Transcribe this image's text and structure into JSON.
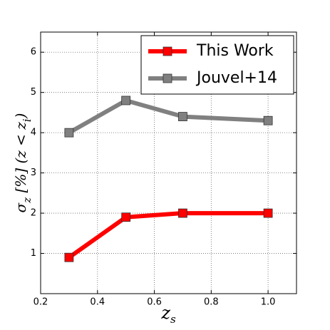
{
  "chart_data": {
    "type": "line",
    "x_label": [
      "z",
      "s"
    ],
    "y_label": [
      "σ",
      "z",
      " [%]   (z < z",
      "i",
      ")"
    ],
    "series": [
      {
        "name": "This Work",
        "color": "#ff0000",
        "x": [
          0.3,
          0.5,
          0.7,
          1.0
        ],
        "values": [
          0.9,
          1.9,
          2.0,
          2.0
        ]
      },
      {
        "name": "Jouvel+14",
        "color": "#808080",
        "x": [
          0.3,
          0.5,
          0.7,
          1.0
        ],
        "values": [
          4.0,
          4.8,
          4.4,
          4.3
        ]
      }
    ],
    "xlim": [
      0.2,
      1.1
    ],
    "xticks": [
      0.2,
      0.4,
      0.6,
      0.8,
      {
        "value": 1.0,
        "label": "1.0"
      }
    ],
    "ylim": [
      0,
      6.5
    ],
    "yticks": [
      1,
      2,
      3,
      4,
      5,
      6
    ],
    "grid": true,
    "legend": "upper right"
  }
}
